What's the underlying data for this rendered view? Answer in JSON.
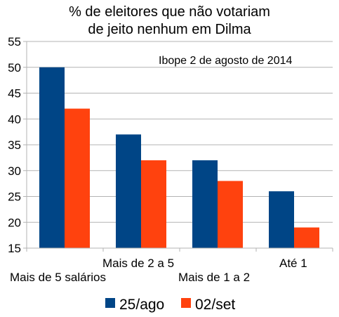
{
  "chart_data": {
    "type": "bar",
    "title_lines": [
      "% de eleitores que não votariam",
      "de jeito nenhum em Dilma"
    ],
    "annotation": "Ibope 2 de agosto de 2014",
    "categories": [
      "Mais de 5 salários",
      "Mais de 2 a 5",
      "Mais de 1 a 2",
      "Até 1"
    ],
    "series": [
      {
        "name": "25/ago",
        "values": [
          50,
          37,
          32,
          26
        ],
        "color": "#004586"
      },
      {
        "name": "02/set",
        "values": [
          42,
          32,
          28,
          19
        ],
        "color": "#ff420e"
      }
    ],
    "ylim": [
      15,
      55
    ],
    "yticks": [
      15,
      20,
      25,
      30,
      35,
      40,
      45,
      50,
      55
    ],
    "grid": true,
    "legend_position": "bottom"
  }
}
